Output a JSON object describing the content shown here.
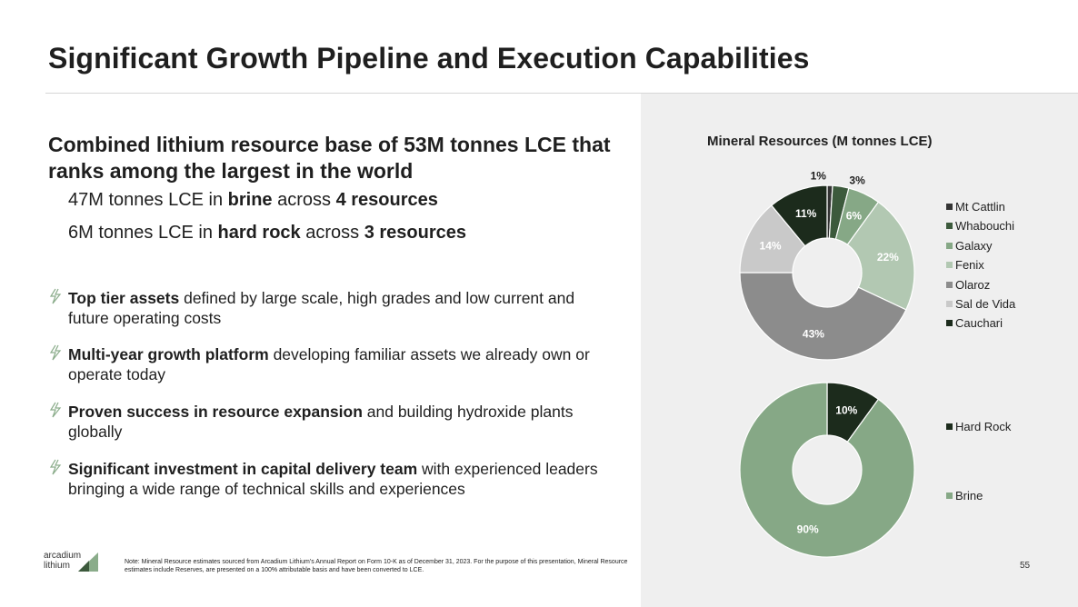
{
  "slide": {
    "title": "Significant Growth Pipeline and Execution Capabilities",
    "headline": "Combined lithium resource base of 53M tonnes LCE that ranks among the largest in the world",
    "sub_lines": [
      {
        "pre": "47M tonnes LCE in ",
        "bold1": "brine",
        "mid": " across ",
        "bold2": "4 resources"
      },
      {
        "pre": "6M tonnes LCE in ",
        "bold1": "hard rock",
        "mid": " across ",
        "bold2": "3 resources"
      }
    ],
    "bullets": [
      {
        "bold": "Top tier assets",
        "rest": " defined by large scale, high grades and low current and future operating costs"
      },
      {
        "bold": "Multi-year growth platform",
        "rest": " developing familiar assets we already own or operate today"
      },
      {
        "bold": "Proven success in resource expansion",
        "rest": " and building hydroxide plants globally"
      },
      {
        "bold": "Significant investment in capital delivery team",
        "rest": " with experienced leaders bringing a wide range of technical skills and experiences"
      }
    ],
    "logo": {
      "line1": "arcadium",
      "line2": "lithium"
    },
    "footnote": "Note: Mineral Resource estimates sourced from Arcadium Lithium's Annual Report on Form 10-K as of December 31, 2023. For the purpose of this presentation, Mineral Resource estimates include Reserves, are presented on a 100% attributable basis and have been converted to LCE.",
    "page_number": "55",
    "colors": {
      "accent_green": "#8aac8a",
      "panel_bg": "#efefef"
    }
  },
  "chart_data": [
    {
      "type": "pie",
      "title": "Mineral Resources (M tonnes LCE)",
      "categories": [
        "Mt Cattlin",
        "Whabouchi",
        "Galaxy",
        "Fenix",
        "Olaroz",
        "Sal de Vida",
        "Cauchari"
      ],
      "values": [
        1,
        3,
        6,
        22,
        43,
        14,
        11
      ],
      "labels": [
        "1%",
        "3%",
        "6%",
        "22%",
        "43%",
        "14%",
        "11%"
      ],
      "colors": [
        "#343434",
        "#3c5a3c",
        "#86a886",
        "#b2c8b2",
        "#8c8c8c",
        "#c9c9c9",
        "#1c2b1c"
      ],
      "legend": "right"
    },
    {
      "type": "pie",
      "title": "",
      "categories": [
        "Hard Rock",
        "Brine"
      ],
      "values": [
        10,
        90
      ],
      "labels": [
        "10%",
        "90%"
      ],
      "colors": [
        "#1c2b1c",
        "#86a886"
      ],
      "legend": "right"
    }
  ]
}
